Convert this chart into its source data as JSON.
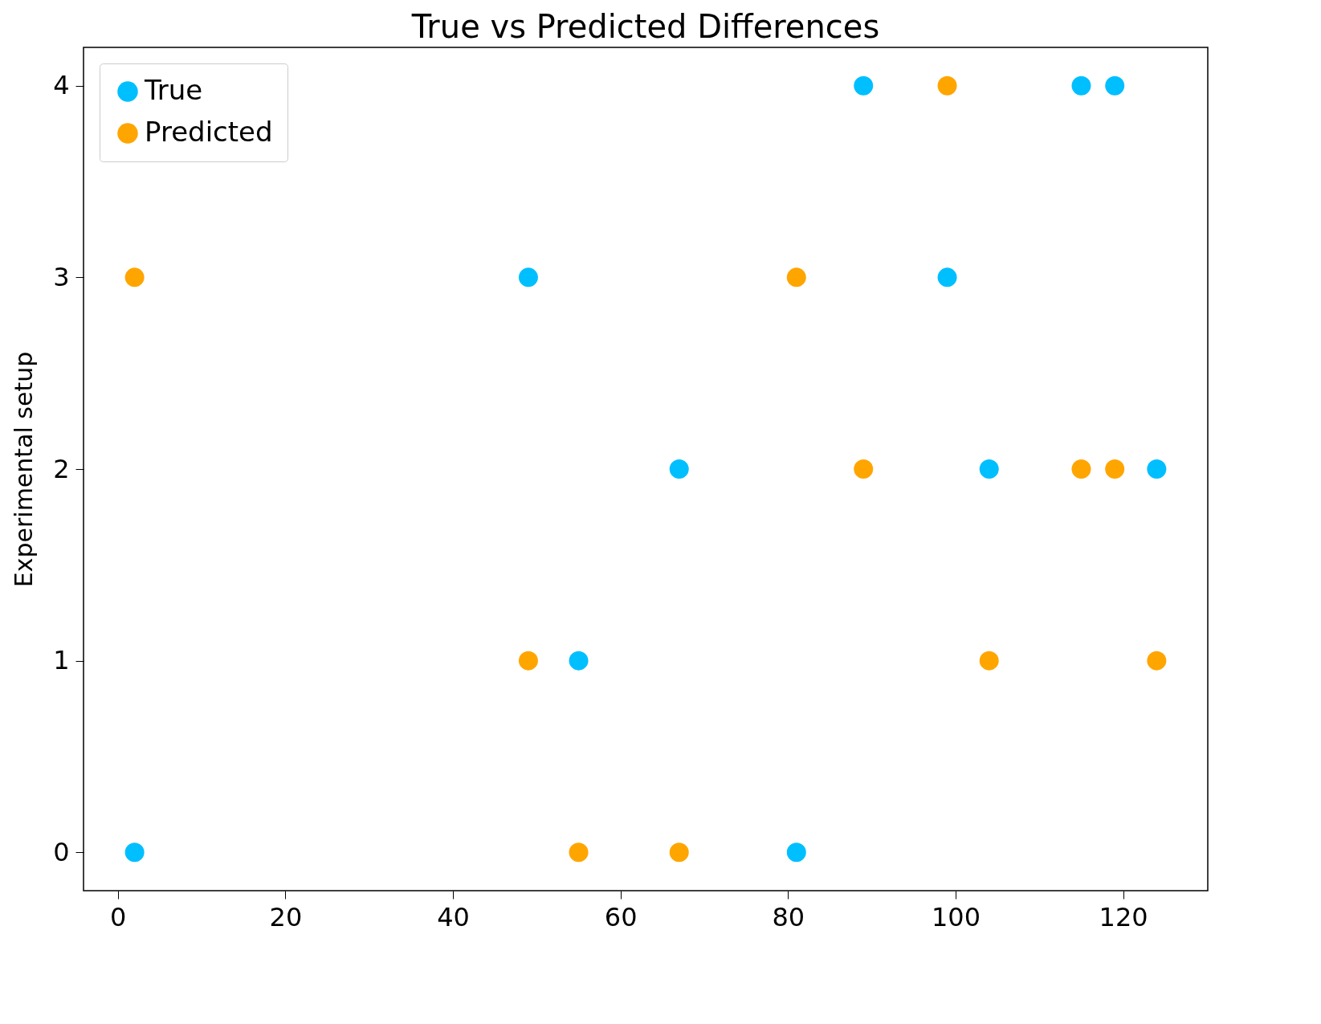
{
  "chart_data": {
    "type": "scatter",
    "title": "True vs Predicted Differences",
    "ylabel": "Experimental setup",
    "xlim": [
      -4.1,
      130.1
    ],
    "xticks": [
      0,
      20,
      40,
      60,
      80,
      100,
      120
    ],
    "ylim": [
      -0.2,
      4.2
    ],
    "yticks": [
      0,
      1,
      2,
      3,
      4
    ],
    "grid": false,
    "legend": "top left",
    "marker": "circle",
    "series": [
      {
        "name": "True",
        "color": "#00bfff",
        "x": [
          2,
          81,
          55,
          67,
          104,
          124,
          49,
          99,
          89,
          115,
          119
        ],
        "values": [
          0,
          0,
          1,
          2,
          2,
          2,
          3,
          3,
          4,
          4,
          4
        ]
      },
      {
        "name": "Predicted",
        "color": "#ffa500",
        "x": [
          2,
          49,
          55,
          67,
          81,
          89,
          99,
          104,
          115,
          119,
          124
        ],
        "values": [
          3,
          1,
          0,
          0,
          3,
          2,
          4,
          1,
          2,
          2,
          1
        ]
      }
    ]
  }
}
